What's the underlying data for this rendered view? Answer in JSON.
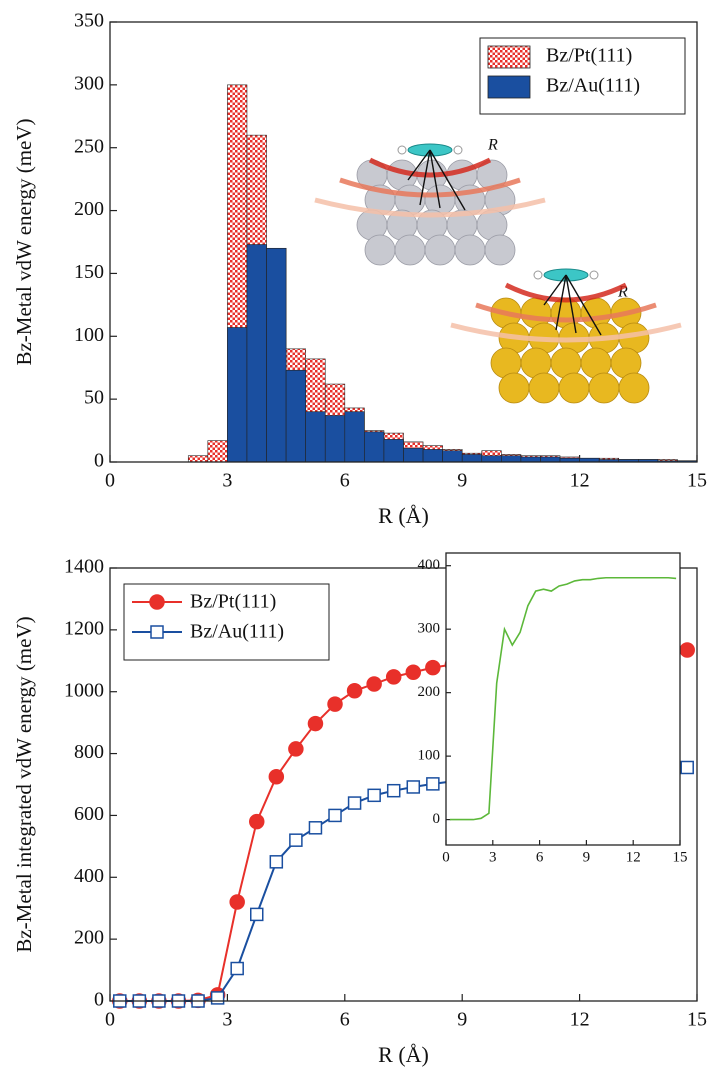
{
  "chart_data": [
    {
      "type": "histogram",
      "xlabel": "R (Å)",
      "ylabel": "Bz-Metal vdW energy (meV)",
      "bins": [
        0,
        0.5,
        1,
        1.5,
        2,
        2.5,
        3,
        3.5,
        4,
        4.5,
        5,
        5.5,
        6,
        6.5,
        7,
        7.5,
        8,
        8.5,
        9,
        9.5,
        10,
        10.5,
        11,
        11.5,
        12,
        12.5,
        13,
        13.5,
        14,
        14.5,
        15
      ],
      "series": [
        {
          "name": "Bz/Pt(111)",
          "color": "#e8302a",
          "pattern": "checkered",
          "values": [
            0,
            0,
            0,
            0,
            5,
            17,
            300,
            260,
            170,
            90,
            82,
            62,
            43,
            25,
            23,
            16,
            13,
            10,
            7,
            9,
            6,
            5,
            5,
            4,
            3,
            3,
            2,
            2,
            2,
            1
          ]
        },
        {
          "name": "Bz/Au(111)",
          "color": "#1a4fa0",
          "values": [
            0,
            0,
            0,
            0,
            0,
            0,
            107,
            173,
            170,
            73,
            40,
            37,
            40,
            24,
            18,
            11,
            10,
            9,
            6,
            5,
            5,
            4,
            4,
            3,
            3,
            2,
            2,
            2,
            1,
            1
          ]
        }
      ],
      "xlim": [
        0,
        15
      ],
      "xticks": [
        0,
        3,
        6,
        9,
        12,
        15
      ],
      "ylim": [
        0,
        350
      ],
      "yticks": [
        0,
        50,
        100,
        150,
        200,
        250,
        300,
        350
      ],
      "legend": "upper right",
      "annotations": [
        "R",
        "R"
      ]
    },
    {
      "type": "line",
      "xlabel": "R (Å)",
      "ylabel": "Bz-Metal integrated vdW energy (meV)",
      "x": [
        0.25,
        0.75,
        1.25,
        1.75,
        2.25,
        2.75,
        3.25,
        3.75,
        4.25,
        4.75,
        5.25,
        5.75,
        6.25,
        6.75,
        7.25,
        7.75,
        8.25,
        8.75,
        9.25,
        9.75,
        10.25,
        10.75,
        11.25,
        11.75,
        12.25,
        12.75,
        13.25,
        13.75,
        14.25,
        14.75
      ],
      "series": [
        {
          "name": "Bz/Pt(111)",
          "color": "#e8302a",
          "marker": "circle",
          "filled": true,
          "values": [
            0,
            0,
            0,
            0,
            2,
            20,
            320,
            580,
            725,
            815,
            897,
            960,
            1003,
            1025,
            1048,
            1063,
            1078,
            1088,
            1095,
            1102,
            1108,
            1113,
            1117,
            1121,
            1124,
            1127,
            1130,
            1132,
            1134,
            1135
          ]
        },
        {
          "name": "Bz/Au(111)",
          "color": "#1a4fa0",
          "marker": "square",
          "filled": false,
          "values": [
            0,
            0,
            0,
            0,
            0,
            10,
            105,
            280,
            450,
            520,
            560,
            600,
            640,
            665,
            680,
            692,
            702,
            710,
            717,
            722,
            727,
            732,
            736,
            740,
            743,
            746,
            749,
            751,
            753,
            755
          ]
        }
      ],
      "xlim": [
        0,
        15
      ],
      "xticks": [
        0,
        3,
        6,
        9,
        12,
        15
      ],
      "ylim": [
        0,
        1400
      ],
      "yticks": [
        0,
        200,
        400,
        600,
        800,
        1000,
        1200,
        1400
      ],
      "legend": "upper left"
    },
    {
      "type": "line",
      "x": [
        0.25,
        0.75,
        1.25,
        1.75,
        2.25,
        2.75,
        3.25,
        3.75,
        4.25,
        4.75,
        5.25,
        5.75,
        6.25,
        6.75,
        7.25,
        7.75,
        8.25,
        8.75,
        9.25,
        9.75,
        10.25,
        10.75,
        11.25,
        11.75,
        12.25,
        12.75,
        13.25,
        13.75,
        14.25,
        14.75
      ],
      "values": [
        0,
        0,
        0,
        0,
        2,
        10,
        215,
        300,
        275,
        295,
        337,
        360,
        363,
        360,
        368,
        371,
        376,
        378,
        378,
        380,
        381,
        381,
        381,
        381,
        381,
        381,
        381,
        381,
        381,
        380
      ],
      "color": "#5cb83a",
      "xlim": [
        0,
        15
      ],
      "xticks": [
        0,
        3,
        6,
        9,
        12,
        15
      ],
      "ylim": [
        -40,
        420
      ],
      "yticks": [
        0,
        100,
        200,
        300,
        400
      ]
    }
  ]
}
